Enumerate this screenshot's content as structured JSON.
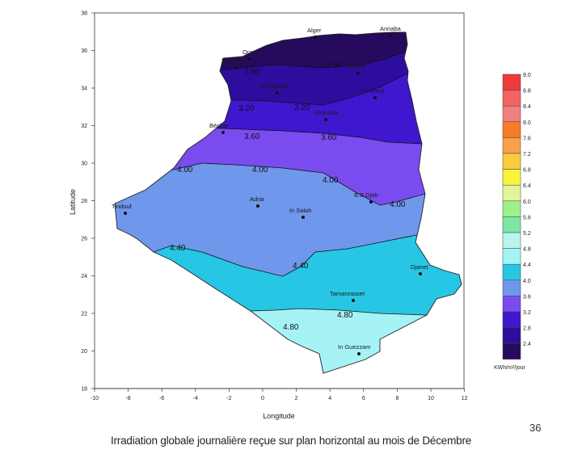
{
  "caption": "Irradiation globale journalière reçue sur plan horizontal au mois de Décembre",
  "slide_number": "36",
  "axes": {
    "xlabel": "Longitude",
    "ylabel": "Latitude",
    "xticks": [
      "-10",
      "-8",
      "-6",
      "-4",
      "-2",
      "0",
      "2",
      "4",
      "6",
      "8",
      "10",
      "12"
    ],
    "yticks": [
      "38",
      "36",
      "34",
      "32",
      "30",
      "28",
      "26",
      "24",
      "22",
      "20",
      "18"
    ]
  },
  "legend": {
    "unit": "KWh/m²/jour",
    "levels": [
      {
        "label": "9.0",
        "color": "#f03a3a"
      },
      {
        "label": "8.8",
        "color": "#f46262"
      },
      {
        "label": "8.4",
        "color": "#f47f7f"
      },
      {
        "label": "8.0",
        "color": "#f77b28"
      },
      {
        "label": "7.6",
        "color": "#f9a04b"
      },
      {
        "label": "7.2",
        "color": "#f8cc3c"
      },
      {
        "label": "6.8",
        "color": "#f8f43c"
      },
      {
        "label": "6.4",
        "color": "#e5f49b"
      },
      {
        "label": "6.0",
        "color": "#9ef08a"
      },
      {
        "label": "5.6",
        "color": "#7ee6a5"
      },
      {
        "label": "5.2",
        "color": "#b7f6ee"
      },
      {
        "label": "4.8",
        "color": "#a6f3f6"
      },
      {
        "label": "4.4",
        "color": "#27c6e5"
      },
      {
        "label": "4.0",
        "color": "#6f97ec"
      },
      {
        "label": "3.6",
        "color": "#7a4cf0"
      },
      {
        "label": "3.2",
        "color": "#3e17cf"
      },
      {
        "label": "2.8",
        "color": "#2d0d9e"
      },
      {
        "label": "2.4",
        "color": "#260a5d"
      }
    ]
  },
  "isolines": [
    "2.80",
    "2.80",
    "3.20",
    "3.20",
    "3.60",
    "3.60",
    "4.00",
    "4.00",
    "4.00",
    "4.00",
    "4.40",
    "4.40",
    "4.80",
    "4.80"
  ],
  "cities": [
    "Alger",
    "Annaba",
    "Oran",
    "Tlemcen",
    "El Bayadh",
    "Ghardaia",
    "Béchar",
    "Adrar",
    "In Salah",
    "B.B.Djeb",
    "Tindouf",
    "Djanet",
    "Tamanrasset",
    "In Guezzam",
    "Biskra",
    "El Oued"
  ]
}
